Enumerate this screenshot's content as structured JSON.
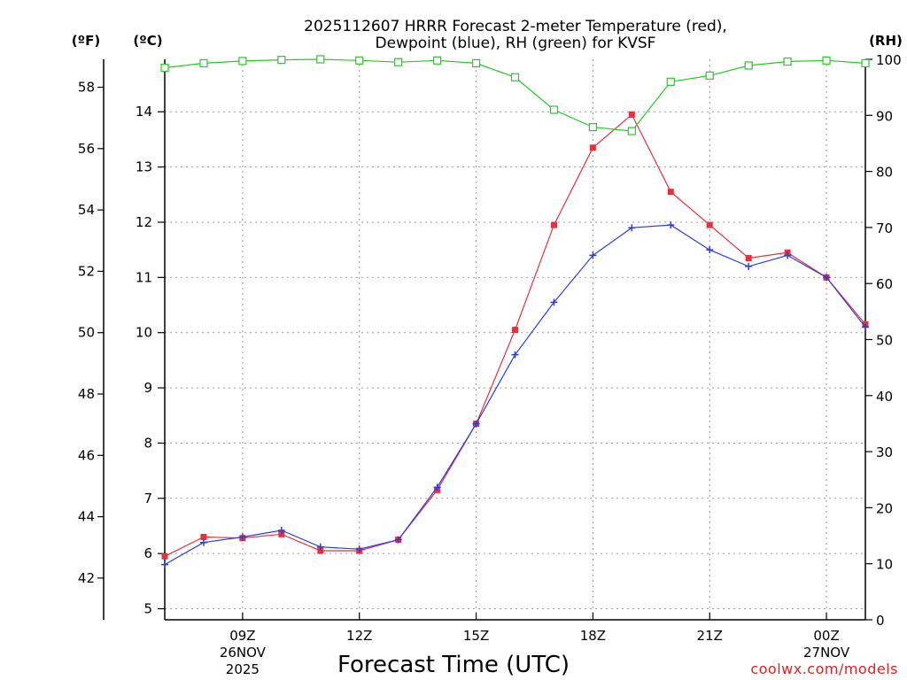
{
  "chart_data": {
    "type": "line",
    "title_line1": "2025112607 HRRR Forecast 2-meter Temperature (red),",
    "title_line2": "Dewpoint (blue), RH (green) for KVSF",
    "xlabel": "Forecast Time (UTC)",
    "credit": "coolwx.com/models",
    "units": {
      "fahrenheit": "(ºF)",
      "celsius": "(ºC)",
      "rh": "(RH)"
    },
    "x": [
      7,
      8,
      9,
      10,
      11,
      12,
      13,
      14,
      15,
      16,
      17,
      18,
      19,
      20,
      21,
      22,
      23,
      24,
      25
    ],
    "x_range": [
      7,
      25
    ],
    "x_ticks": [
      {
        "x": 9,
        "line1": "09Z",
        "line2": "26NOV",
        "line3": "2025"
      },
      {
        "x": 12,
        "line1": "12Z",
        "line2": "",
        "line3": ""
      },
      {
        "x": 15,
        "line1": "15Z",
        "line2": "",
        "line3": ""
      },
      {
        "x": 18,
        "line1": "18Z",
        "line2": "",
        "line3": ""
      },
      {
        "x": 21,
        "line1": "21Z",
        "line2": "",
        "line3": ""
      },
      {
        "x": 24,
        "line1": "00Z",
        "line2": "27NOV",
        "line3": ""
      }
    ],
    "celsius_range": [
      4.8,
      14.95
    ],
    "celsius_ticks": [
      "5",
      "6",
      "7",
      "8",
      "9",
      "10",
      "11",
      "12",
      "13",
      "14"
    ],
    "fahrenheit_ticks": [
      "42",
      "44",
      "46",
      "48",
      "50",
      "52",
      "54",
      "56",
      "58"
    ],
    "rh_range": [
      0,
      100
    ],
    "rh_ticks": [
      "0",
      "10",
      "20",
      "30",
      "40",
      "50",
      "60",
      "70",
      "80",
      "90",
      "100"
    ],
    "series": [
      {
        "name": "Temperature",
        "unit": "celsius",
        "color": "#e8303a",
        "marker": "filled-square",
        "values": [
          5.95,
          6.3,
          6.28,
          6.35,
          6.05,
          6.05,
          6.25,
          7.15,
          8.35,
          10.05,
          11.95,
          13.35,
          13.95,
          12.55,
          11.95,
          11.35,
          11.45,
          11.0,
          10.15
        ]
      },
      {
        "name": "Dewpoint",
        "unit": "celsius",
        "color": "#2a3ee0",
        "marker": "plus",
        "values": [
          5.8,
          6.2,
          6.3,
          6.42,
          6.12,
          6.08,
          6.25,
          7.2,
          8.35,
          9.6,
          10.55,
          11.4,
          11.9,
          11.95,
          11.5,
          11.2,
          11.4,
          11.0,
          10.1
        ]
      },
      {
        "name": "RH",
        "unit": "rh",
        "color": "#22cc22",
        "marker": "open-square",
        "values": [
          98.5,
          99.3,
          99.7,
          99.9,
          100,
          99.8,
          99.5,
          99.8,
          99.3,
          96.8,
          91.0,
          87.9,
          87.2,
          96.0,
          97.1,
          98.9,
          99.6,
          99.8,
          99.3
        ]
      }
    ]
  }
}
